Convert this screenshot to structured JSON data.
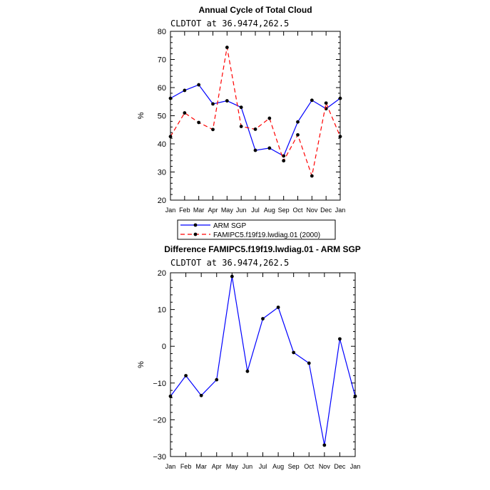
{
  "chart_data": [
    {
      "type": "line",
      "title": "Annual Cycle of Total Cloud",
      "subtitle": "CLDTOT at 36.9474,262.5",
      "xlabel": "",
      "ylabel": "%",
      "ylim": [
        20,
        80
      ],
      "yticks": [
        20,
        30,
        40,
        50,
        60,
        70,
        80
      ],
      "categories": [
        "Jan",
        "Feb",
        "Mar",
        "Apr",
        "May",
        "Jun",
        "Jul",
        "Aug",
        "Sep",
        "Oct",
        "Nov",
        "Dec",
        "Jan"
      ],
      "grid": false,
      "legend_position": "below",
      "series": [
        {
          "name": "ARM SGP",
          "color": "#0000ff",
          "line_style": "solid",
          "values": [
            56.2,
            59.0,
            61.0,
            54.2,
            55.3,
            53.0,
            37.7,
            38.5,
            35.7,
            47.8,
            55.5,
            52.5,
            56.2
          ]
        },
        {
          "name": "FAMIPC5.f19f19.lwdiag.01 (2000)",
          "color": "#ff0000",
          "line_style": "dashed",
          "values": [
            42.6,
            51.0,
            47.6,
            45.1,
            74.3,
            46.2,
            45.2,
            49.1,
            34.0,
            43.2,
            28.6,
            54.5,
            42.6
          ]
        }
      ]
    },
    {
      "type": "line",
      "title": "Difference FAMIPC5.f19f19.lwdiag.01 - ARM SGP",
      "subtitle": "CLDTOT at 36.9474,262.5",
      "xlabel": "",
      "ylabel": "%",
      "ylim": [
        -30,
        20
      ],
      "yticks": [
        -30,
        -20,
        -10,
        0,
        10,
        20
      ],
      "categories": [
        "Jan",
        "Feb",
        "Mar",
        "Apr",
        "May",
        "Jun",
        "Jul",
        "Aug",
        "Sep",
        "Oct",
        "Nov",
        "Dec",
        "Jan"
      ],
      "grid": false,
      "series": [
        {
          "name": "Difference",
          "color": "#0000ff",
          "line_style": "solid",
          "values": [
            -13.6,
            -8.0,
            -13.4,
            -9.1,
            19.0,
            -6.8,
            7.5,
            10.6,
            -1.7,
            -4.6,
            -26.9,
            2.0,
            -13.6
          ]
        }
      ]
    }
  ]
}
